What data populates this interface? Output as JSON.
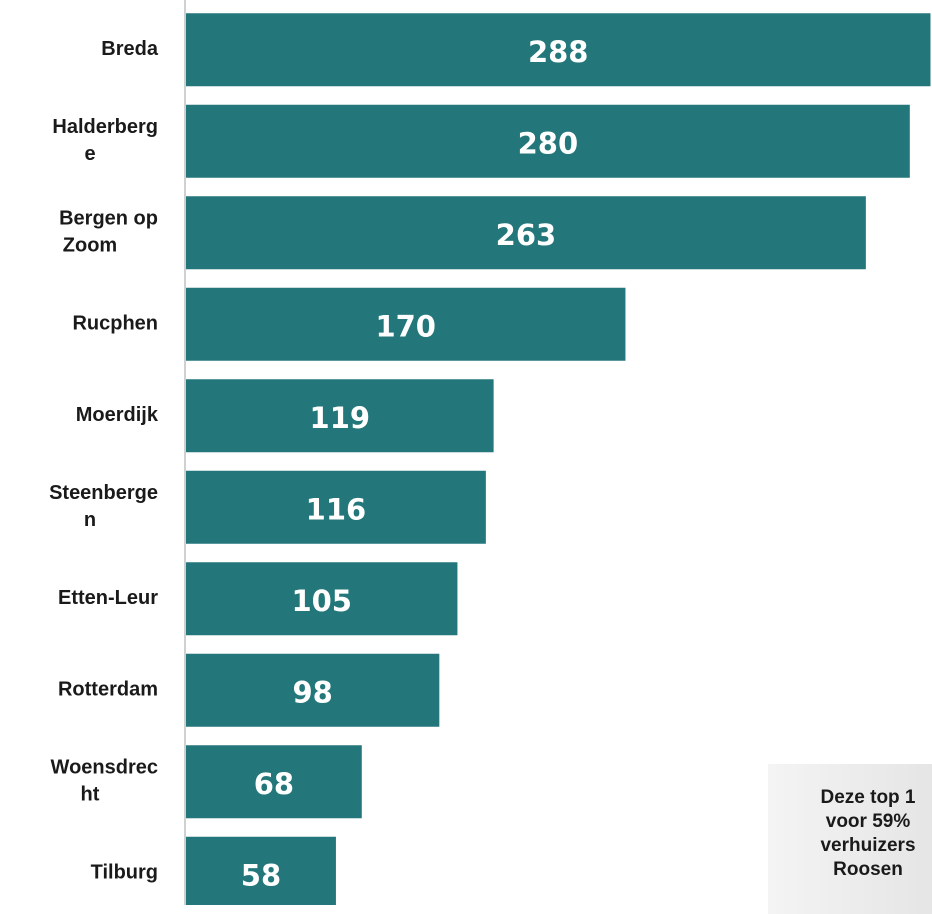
{
  "chart_data": {
    "type": "bar",
    "orientation": "horizontal",
    "categories": [
      [
        "Breda"
      ],
      [
        "Halderberg",
        "e"
      ],
      [
        "Bergen op",
        "Zoom"
      ],
      [
        "Rucphen"
      ],
      [
        "Moerdijk"
      ],
      [
        "Steenberge",
        "n"
      ],
      [
        "Etten-Leur"
      ],
      [
        "Rotterdam"
      ],
      [
        "Woensdrec",
        "ht"
      ],
      [
        "Tilburg"
      ]
    ],
    "values": [
      288,
      280,
      263,
      170,
      119,
      116,
      105,
      98,
      68,
      58
    ],
    "xlim": [
      0,
      290
    ],
    "bar_color": "#23777a",
    "axis_color": "#d0d0d0",
    "grid": false,
    "legend": false
  },
  "callout": {
    "lines": [
      "Deze top 1",
      "voor 59%",
      "verhuizers",
      "Roosen"
    ]
  }
}
